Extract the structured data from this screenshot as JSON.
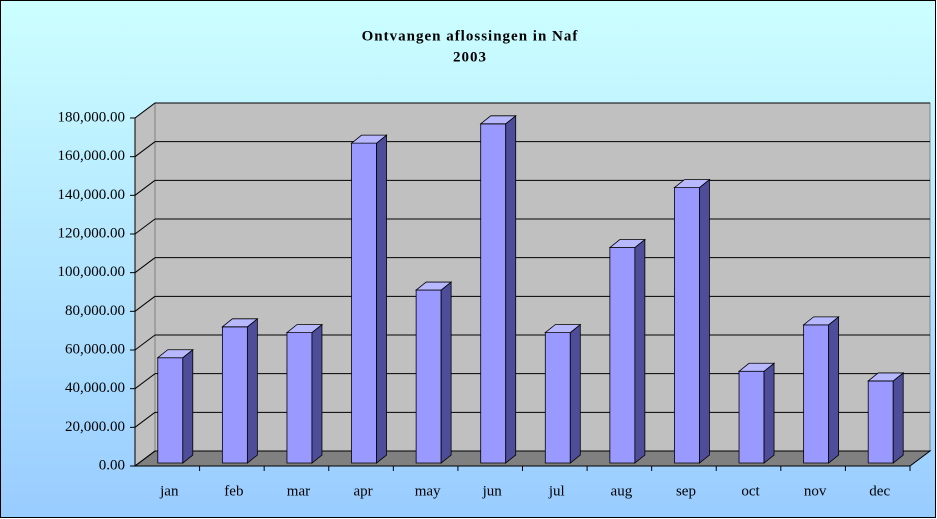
{
  "chart_data": {
    "type": "bar3d",
    "title": "Ontvangen aflossingen in Naf",
    "subtitle": "2003",
    "categories": [
      "jan",
      "feb",
      "mar",
      "apr",
      "may",
      "jun",
      "jul",
      "aug",
      "sep",
      "oct",
      "nov",
      "dec"
    ],
    "values": [
      56000,
      72000,
      69000,
      167000,
      91000,
      177000,
      69000,
      113000,
      144000,
      49000,
      73000,
      44000
    ],
    "color": "#9999ff",
    "ylim": [
      0,
      180000
    ],
    "yticks": [
      {
        "value": 0,
        "label": "0.00"
      },
      {
        "value": 20000,
        "label": "20,000.00"
      },
      {
        "value": 40000,
        "label": "40,000.00"
      },
      {
        "value": 60000,
        "label": "60,000.00"
      },
      {
        "value": 80000,
        "label": "80,000.00"
      },
      {
        "value": 100000,
        "label": "100,000.00"
      },
      {
        "value": 120000,
        "label": "120,000.00"
      },
      {
        "value": 140000,
        "label": "140,000.00"
      },
      {
        "value": 160000,
        "label": "160,000.00"
      },
      {
        "value": 180000,
        "label": "180,000.00"
      }
    ],
    "grid": true
  }
}
